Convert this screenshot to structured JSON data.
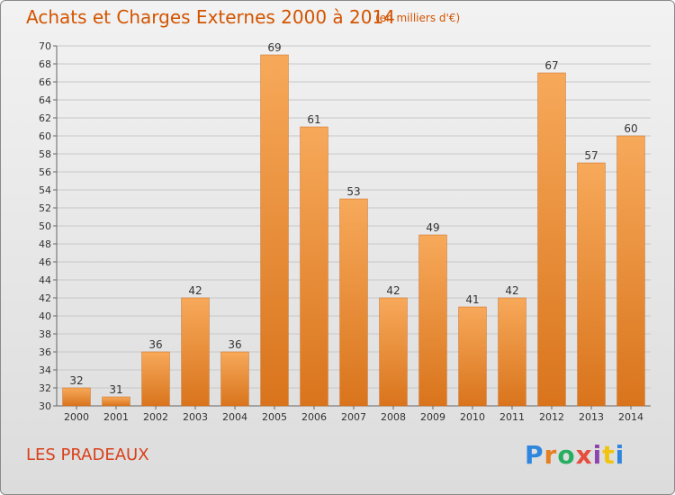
{
  "header": {
    "title": "Achats et Charges Externes 2000 à 2014",
    "subtitle": "(en milliers d'€)"
  },
  "footer": {
    "location": "LES PRADEAUX",
    "logo_text": "Proxiti",
    "logo_colors": [
      "#2e86de",
      "#e67e22",
      "#27ae60",
      "#e74c3c",
      "#8e44ad",
      "#f1c40f",
      "#2e86de"
    ]
  },
  "colors": {
    "bar_light": "#f7a95a",
    "bar_dark": "#d9741c",
    "title": "#d35400",
    "location": "#d93f1a",
    "grid": "#c8c8c8"
  },
  "chart_data": {
    "type": "bar",
    "title": "Achats et Charges Externes 2000 à 2014",
    "subtitle": "(en milliers d'€)",
    "categories": [
      "2000",
      "2001",
      "2002",
      "2003",
      "2004",
      "2005",
      "2006",
      "2007",
      "2008",
      "2009",
      "2010",
      "2011",
      "2012",
      "2013",
      "2014"
    ],
    "values": [
      32,
      31,
      36,
      42,
      36,
      69,
      61,
      53,
      42,
      49,
      41,
      42,
      67,
      57,
      60
    ],
    "ylim": [
      30,
      70
    ],
    "yticks": [
      30,
      32,
      34,
      36,
      38,
      40,
      42,
      44,
      46,
      48,
      50,
      52,
      54,
      56,
      58,
      60,
      62,
      64,
      66,
      68,
      70
    ],
    "grid": true,
    "xlabel": "",
    "ylabel": ""
  }
}
